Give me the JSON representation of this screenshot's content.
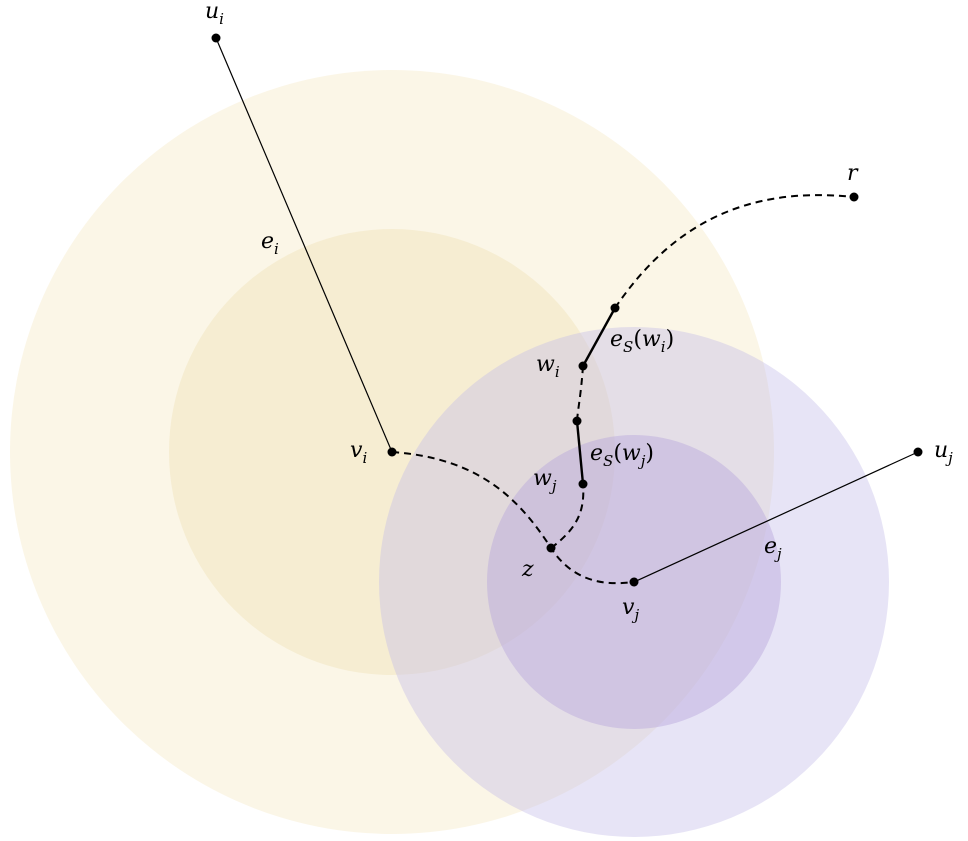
{
  "colors": {
    "yellow_outer": "#fbf5e4",
    "yellow_inner": "#f5ecce",
    "purple_outer": "#d6d0ef",
    "purple_inner": "#c6b6e2",
    "ink": "#000000"
  },
  "nodes": {
    "u_i": {
      "base": "u",
      "sub": "i"
    },
    "v_i": {
      "base": "v",
      "sub": "i"
    },
    "u_j": {
      "base": "u",
      "sub": "j"
    },
    "v_j": {
      "base": "v",
      "sub": "j"
    },
    "w_i": {
      "base": "w",
      "sub": "i"
    },
    "w_j": {
      "base": "w",
      "sub": "j"
    },
    "z": {
      "base": "z"
    },
    "r": {
      "base": "r"
    }
  },
  "edges": {
    "e_i": {
      "base": "e",
      "sub": "i"
    },
    "e_j": {
      "base": "e",
      "sub": "j"
    },
    "e_S_w_i": {
      "base": "e",
      "sub": "S",
      "open": "(",
      "arg": "w",
      "arg_sub": "i",
      "close": ")"
    },
    "e_S_w_j": {
      "base": "e",
      "sub": "S",
      "open": "(",
      "arg": "w",
      "arg_sub": "j",
      "close": ")"
    }
  }
}
